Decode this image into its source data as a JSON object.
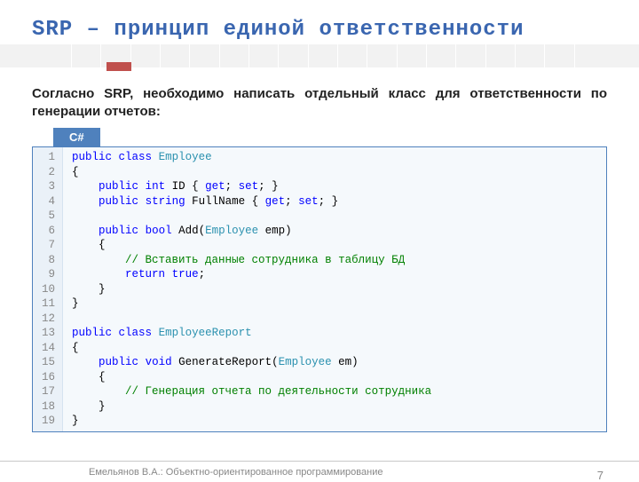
{
  "title": "SRP – принцип единой ответственности",
  "intro": "Согласно SRP, необходимо написать отдельный класс для ответственности по генерации отчетов:",
  "code_tab": "C#",
  "code_lines": [
    [
      {
        "t": "public",
        "c": "kw"
      },
      {
        "t": " "
      },
      {
        "t": "class",
        "c": "kw"
      },
      {
        "t": " "
      },
      {
        "t": "Employee",
        "c": "type"
      }
    ],
    [
      {
        "t": "{"
      }
    ],
    [
      {
        "t": "    "
      },
      {
        "t": "public",
        "c": "kw"
      },
      {
        "t": " "
      },
      {
        "t": "int",
        "c": "kw"
      },
      {
        "t": " ID { "
      },
      {
        "t": "get",
        "c": "kw"
      },
      {
        "t": "; "
      },
      {
        "t": "set",
        "c": "kw"
      },
      {
        "t": "; }"
      }
    ],
    [
      {
        "t": "    "
      },
      {
        "t": "public",
        "c": "kw"
      },
      {
        "t": " "
      },
      {
        "t": "string",
        "c": "kw"
      },
      {
        "t": " FullName { "
      },
      {
        "t": "get",
        "c": "kw"
      },
      {
        "t": "; "
      },
      {
        "t": "set",
        "c": "kw"
      },
      {
        "t": "; }"
      }
    ],
    [
      {
        "t": " "
      }
    ],
    [
      {
        "t": "    "
      },
      {
        "t": "public",
        "c": "kw"
      },
      {
        "t": " "
      },
      {
        "t": "bool",
        "c": "kw"
      },
      {
        "t": " Add("
      },
      {
        "t": "Employee",
        "c": "type"
      },
      {
        "t": " emp)"
      }
    ],
    [
      {
        "t": "    {"
      }
    ],
    [
      {
        "t": "        "
      },
      {
        "t": "// Вставить данные сотрудника в таблицу БД",
        "c": "com"
      }
    ],
    [
      {
        "t": "        "
      },
      {
        "t": "return",
        "c": "kw"
      },
      {
        "t": " "
      },
      {
        "t": "true",
        "c": "kw"
      },
      {
        "t": ";"
      }
    ],
    [
      {
        "t": "    }"
      }
    ],
    [
      {
        "t": "}"
      }
    ],
    [
      {
        "t": " "
      }
    ],
    [
      {
        "t": "public",
        "c": "kw"
      },
      {
        "t": " "
      },
      {
        "t": "class",
        "c": "kw"
      },
      {
        "t": " "
      },
      {
        "t": "EmployeeReport",
        "c": "type"
      }
    ],
    [
      {
        "t": "{"
      }
    ],
    [
      {
        "t": "    "
      },
      {
        "t": "public",
        "c": "kw"
      },
      {
        "t": " "
      },
      {
        "t": "void",
        "c": "kw"
      },
      {
        "t": " GenerateReport("
      },
      {
        "t": "Employee",
        "c": "type"
      },
      {
        "t": " em)"
      }
    ],
    [
      {
        "t": "    {"
      }
    ],
    [
      {
        "t": "        "
      },
      {
        "t": "// Генерация отчета по деятельности сотрудника",
        "c": "com"
      }
    ],
    [
      {
        "t": "    }"
      }
    ],
    [
      {
        "t": "}"
      }
    ]
  ],
  "footer_author": "Емельянов В.А.: Объектно-ориентированное программирование",
  "page_number": "7",
  "colors": {
    "title": "#3a66b0",
    "accent_red": "#c0504d",
    "tab_bg": "#4f81bd",
    "keyword": "#0000ff",
    "type": "#2b91af",
    "comment": "#008000"
  },
  "tick_count": 18
}
